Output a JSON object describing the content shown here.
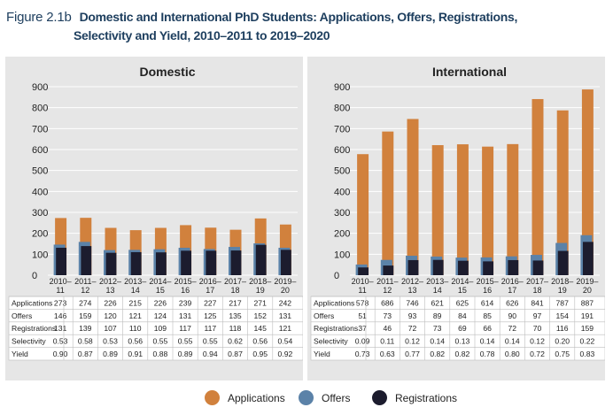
{
  "figure": {
    "label": "Figure 2.1b",
    "title_line1": "Domestic and International PhD Students: Applications, Offers, Registrations,",
    "title_line2": "Selectivity and Yield, 2010–2011 to 2019–2020"
  },
  "colors": {
    "applications": "#d1813d",
    "offers": "#5b82a8",
    "registrations": "#1c1c2e",
    "panel_bg": "#e6e6e6",
    "grid": "#ffffff"
  },
  "chart_data": [
    {
      "type": "bar",
      "title": "Domestic",
      "categories": [
        "2010–11",
        "2011–12",
        "2012–13",
        "2013–14",
        "2014–15",
        "2015–16",
        "2016–17",
        "2017–18",
        "2018–19",
        "2019–20"
      ],
      "ylim": [
        0,
        900
      ],
      "yticks": [
        0,
        100,
        200,
        300,
        400,
        500,
        600,
        700,
        800,
        900
      ],
      "grid": true,
      "series": [
        {
          "name": "Applications",
          "values": [
            273,
            274,
            226,
            215,
            226,
            239,
            227,
            217,
            271,
            242
          ]
        },
        {
          "name": "Offers",
          "values": [
            146,
            159,
            120,
            121,
            124,
            131,
            125,
            135,
            152,
            131
          ]
        },
        {
          "name": "Registrations",
          "values": [
            131,
            139,
            107,
            110,
            109,
            117,
            117,
            118,
            145,
            121
          ]
        }
      ],
      "table": [
        {
          "label": "Applications",
          "values": [
            "273",
            "274",
            "226",
            "215",
            "226",
            "239",
            "227",
            "217",
            "271",
            "242"
          ]
        },
        {
          "label": "Offers",
          "values": [
            "146",
            "159",
            "120",
            "121",
            "124",
            "131",
            "125",
            "135",
            "152",
            "131"
          ]
        },
        {
          "label": "Registrations",
          "values": [
            "131",
            "139",
            "107",
            "110",
            "109",
            "117",
            "117",
            "118",
            "145",
            "121"
          ]
        },
        {
          "label": "Selectivity",
          "values": [
            "0.53",
            "0.58",
            "0.53",
            "0.56",
            "0.55",
            "0.55",
            "0.55",
            "0.62",
            "0.56",
            "0.54"
          ]
        },
        {
          "label": "Yield",
          "values": [
            "0.90",
            "0.87",
            "0.89",
            "0.91",
            "0.88",
            "0.89",
            "0.94",
            "0.87",
            "0.95",
            "0.92"
          ]
        }
      ]
    },
    {
      "type": "bar",
      "title": "International",
      "categories": [
        "2010–11",
        "2011–12",
        "2012–13",
        "2013–14",
        "2014–15",
        "2015–16",
        "2016–17",
        "2017–18",
        "2018–19",
        "2019–20"
      ],
      "ylim": [
        0,
        900
      ],
      "yticks": [
        0,
        100,
        200,
        300,
        400,
        500,
        600,
        700,
        800,
        900
      ],
      "grid": true,
      "series": [
        {
          "name": "Applications",
          "values": [
            578,
            686,
            746,
            621,
            625,
            614,
            626,
            841,
            787,
            887
          ]
        },
        {
          "name": "Offers",
          "values": [
            51,
            73,
            93,
            89,
            84,
            85,
            90,
            97,
            154,
            191
          ]
        },
        {
          "name": "Registrations",
          "values": [
            37,
            46,
            72,
            73,
            69,
            66,
            72,
            70,
            116,
            159
          ]
        }
      ],
      "table": [
        {
          "label": "Applications",
          "values": [
            "578",
            "686",
            "746",
            "621",
            "625",
            "614",
            "626",
            "841",
            "787",
            "887"
          ]
        },
        {
          "label": "Offers",
          "values": [
            "51",
            "73",
            "93",
            "89",
            "84",
            "85",
            "90",
            "97",
            "154",
            "191"
          ]
        },
        {
          "label": "Registrations",
          "values": [
            "37",
            "46",
            "72",
            "73",
            "69",
            "66",
            "72",
            "70",
            "116",
            "159"
          ]
        },
        {
          "label": "Selectivity",
          "values": [
            "0.09",
            "0.11",
            "0.12",
            "0.14",
            "0.13",
            "0.14",
            "0.14",
            "0.12",
            "0.20",
            "0.22"
          ]
        },
        {
          "label": "Yield",
          "values": [
            "0.73",
            "0.63",
            "0.77",
            "0.82",
            "0.82",
            "0.78",
            "0.80",
            "0.72",
            "0.75",
            "0.83"
          ]
        }
      ]
    }
  ],
  "legend": {
    "placement": "bottom-center",
    "items": [
      {
        "label": "Applications",
        "color": "#d1813d"
      },
      {
        "label": "Offers",
        "color": "#5b82a8"
      },
      {
        "label": "Registrations",
        "color": "#1c1c2e"
      }
    ]
  }
}
